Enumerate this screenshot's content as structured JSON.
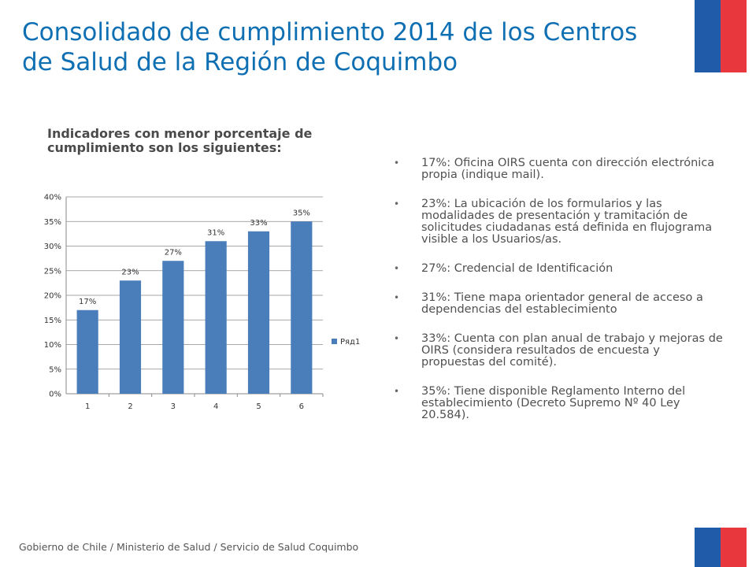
{
  "title": {
    "line1": "Consolidado de cumplimiento 2014 de los Centros",
    "line2": "de Salud de la Región de Coquimbo"
  },
  "subtitle": {
    "line1": "Indicadores con menor porcentaje de",
    "line2": "cumplimiento son los siguientes:"
  },
  "bullets": [
    "17%: Oficina OIRS cuenta con dirección electrónica propia (indique mail).",
    "23%: La ubicación de los formularios y las modalidades de presentación y tramitación de solicitudes ciudadanas está definida en flujograma visible a los Usuarios/as.",
    "27%: Credencial de Identificación",
    "31%: Tiene mapa orientador general de acceso a dependencias del establecimiento",
    "33%: Cuenta con plan anual de trabajo y mejoras de OIRS (considera resultados de encuesta y propuestas del comité).",
    "35%: Tiene disponible Reglamento Interno del establecimiento (Decreto Supremo Nº 40 Ley 20.584)."
  ],
  "bullet_marker": "•",
  "footer": "Gobierno de Chile / Ministerio de Salud / Servicio de Salud Coquimbo",
  "colors": {
    "title": "#0f6fb3",
    "bar": "#4a7ebb",
    "flag_blue": "#1f5ba8",
    "flag_red": "#e8373d"
  },
  "chart_data": {
    "type": "bar",
    "categories": [
      "1",
      "2",
      "3",
      "4",
      "5",
      "6"
    ],
    "series": [
      {
        "name": "Ряд1",
        "values": [
          0.17,
          0.23,
          0.27,
          0.31,
          0.33,
          0.35
        ]
      }
    ],
    "data_labels": [
      "17%",
      "23%",
      "27%",
      "31%",
      "33%",
      "35%"
    ],
    "y_ticks": [
      "0%",
      "5%",
      "10%",
      "15%",
      "20%",
      "25%",
      "30%",
      "35%",
      "40%"
    ],
    "ylim": [
      0,
      0.4
    ],
    "grid": true,
    "legend_position": "right"
  }
}
